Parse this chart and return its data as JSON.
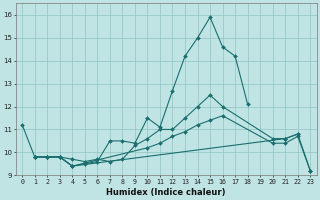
{
  "xlabel": "Humidex (Indice chaleur)",
  "background_color": "#c0e4e4",
  "line_color": "#1a6e6e",
  "grid_color": "#90c4c4",
  "xlim": [
    -0.5,
    23.5
  ],
  "ylim": [
    9.0,
    16.5
  ],
  "yticks": [
    9,
    10,
    11,
    12,
    13,
    14,
    15,
    16
  ],
  "xticks": [
    0,
    1,
    2,
    3,
    4,
    5,
    6,
    7,
    8,
    9,
    10,
    11,
    12,
    13,
    14,
    15,
    16,
    17,
    18,
    19,
    20,
    21,
    22,
    23
  ],
  "lines": [
    {
      "x": [
        0,
        1,
        2,
        3,
        4,
        5,
        6,
        7,
        8,
        9,
        10,
        11,
        12,
        13,
        14,
        15,
        16,
        17,
        18
      ],
      "y": [
        11.2,
        9.8,
        9.8,
        9.8,
        9.4,
        9.5,
        9.6,
        10.5,
        10.5,
        10.4,
        11.5,
        11.1,
        12.7,
        14.2,
        15.0,
        15.9,
        14.6,
        14.2,
        12.1
      ]
    },
    {
      "x": [
        1,
        2,
        3,
        4,
        5,
        6,
        7,
        8,
        9,
        10,
        11,
        12,
        13,
        14,
        15,
        16,
        20,
        21,
        22,
        23
      ],
      "y": [
        9.8,
        9.8,
        9.8,
        9.7,
        9.6,
        9.7,
        9.6,
        9.7,
        10.3,
        10.6,
        11.0,
        11.0,
        11.5,
        12.0,
        12.5,
        12.0,
        10.6,
        10.6,
        10.8,
        9.2
      ]
    },
    {
      "x": [
        1,
        2,
        3,
        4,
        10,
        11,
        12,
        13,
        14,
        15,
        16,
        20,
        21,
        22,
        23
      ],
      "y": [
        9.8,
        9.8,
        9.8,
        9.4,
        10.2,
        10.4,
        10.7,
        10.9,
        11.2,
        11.4,
        11.6,
        10.4,
        10.4,
        10.7,
        9.2
      ]
    },
    {
      "x": [
        1,
        2,
        3,
        4,
        21,
        22
      ],
      "y": [
        9.8,
        9.8,
        9.8,
        9.4,
        10.6,
        10.8
      ]
    }
  ]
}
